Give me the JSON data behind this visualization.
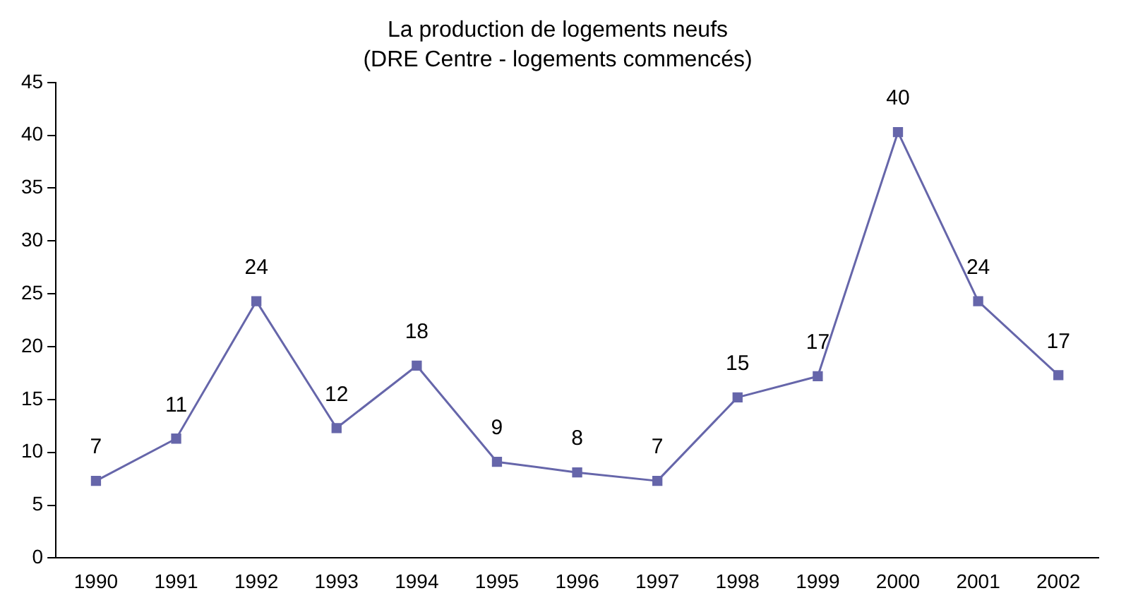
{
  "chart_data": {
    "type": "line",
    "title": "La production de logements neufs",
    "subtitle": "(DRE Centre - logements commencés)",
    "categories": [
      "1990",
      "1991",
      "1992",
      "1993",
      "1994",
      "1995",
      "1996",
      "1997",
      "1998",
      "1999",
      "2000",
      "2001",
      "2002"
    ],
    "series": [
      {
        "color": "#6666aa",
        "values": [
          7.3,
          11.3,
          24.3,
          12.3,
          18.2,
          9.1,
          8.1,
          7.3,
          15.2,
          17.2,
          40.3,
          24.3,
          17.3
        ],
        "value_labels": [
          "7",
          "11",
          "24",
          "12",
          "18",
          "9",
          "8",
          "7",
          "15",
          "17",
          "40",
          "24",
          "17"
        ]
      }
    ],
    "ylim": [
      0,
      45
    ],
    "yticks": [
      0,
      5,
      10,
      15,
      20,
      25,
      30,
      35,
      40,
      45
    ],
    "grid": false,
    "legend": false,
    "marker": "square",
    "line_style": "solid"
  }
}
